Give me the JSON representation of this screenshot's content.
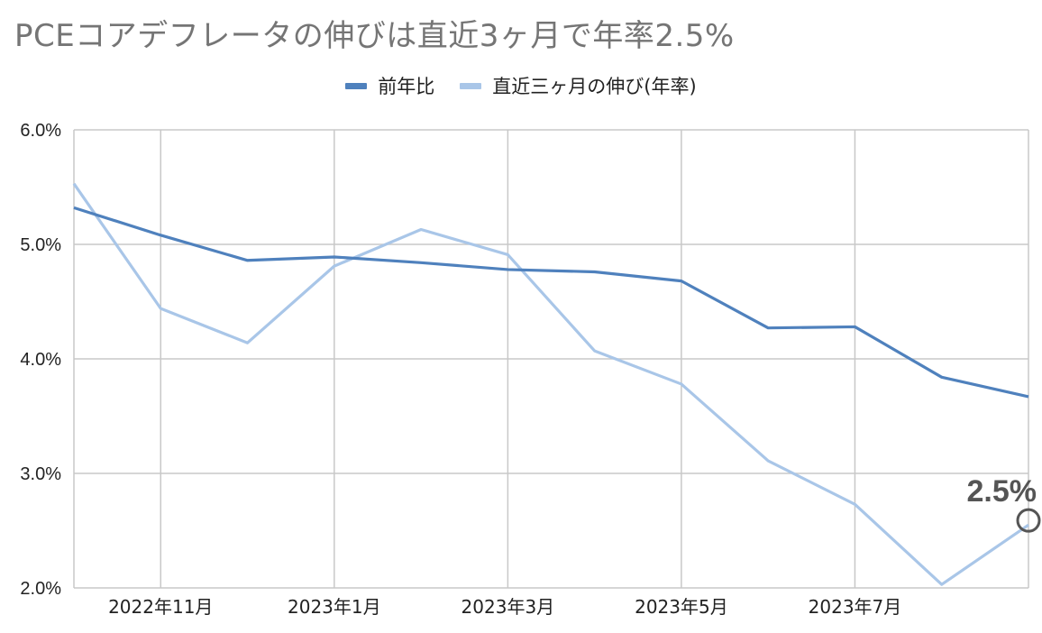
{
  "chart_data": {
    "type": "line",
    "title": "PCEコアデフレータの伸びは直近3ヶ月で年率2.5%",
    "x": [
      "2022-10",
      "2022-11",
      "2022-12",
      "2023-01",
      "2023-02",
      "2023-03",
      "2023-04",
      "2023-05",
      "2023-06",
      "2023-07",
      "2023-08",
      "2023-09"
    ],
    "x_tick_labels": [
      "2022年11月",
      "2023年1月",
      "2023年3月",
      "2023年5月",
      "2023年7月"
    ],
    "x_tick_positions": [
      "2022-11",
      "2023-01",
      "2023-03",
      "2023-05",
      "2023-07"
    ],
    "y_tick_labels": [
      "6.0%",
      "5.0%",
      "4.0%",
      "3.0%",
      "2.0%"
    ],
    "y_ticks": [
      6.0,
      5.0,
      4.0,
      3.0,
      2.0
    ],
    "ylim": [
      2.0,
      6.0
    ],
    "grid": true,
    "legend_placement": "top-center",
    "series": [
      {
        "name": "前年比",
        "color": "#4f81bd",
        "values": [
          5.32,
          5.08,
          4.86,
          4.89,
          4.84,
          4.78,
          4.76,
          4.68,
          4.27,
          4.28,
          3.84,
          3.67
        ]
      },
      {
        "name": "直近三ヶ月の伸び(年率)",
        "color": "#a9c6e8",
        "values": [
          5.53,
          4.44,
          4.14,
          4.81,
          5.13,
          4.91,
          4.07,
          3.78,
          3.11,
          2.73,
          2.03,
          2.55
        ]
      }
    ],
    "annotation": {
      "text": "2.5%",
      "series": 1,
      "point": "2023-09",
      "marker": "circle"
    }
  }
}
